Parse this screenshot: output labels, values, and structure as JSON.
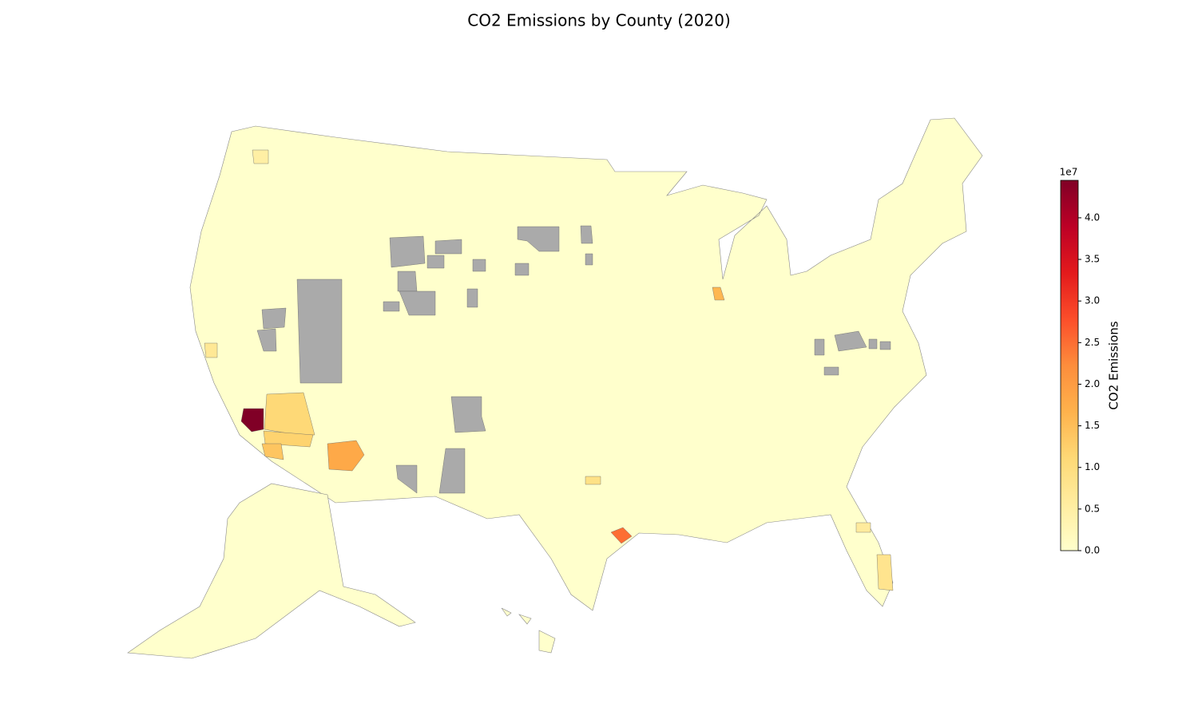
{
  "chart_data": {
    "type": "choropleth",
    "title": "CO2 Emissions by County (2020)",
    "colorbar_label": "CO2 Emissions",
    "colorbar_offset": "1e7",
    "clim": [
      0,
      44500000
    ],
    "cticks": [
      {
        "value": 0,
        "label": "0.0"
      },
      {
        "value": 5000000,
        "label": "0.5"
      },
      {
        "value": 10000000,
        "label": "1.0"
      },
      {
        "value": 15000000,
        "label": "1.5"
      },
      {
        "value": 20000000,
        "label": "2.0"
      },
      {
        "value": 25000000,
        "label": "2.5"
      },
      {
        "value": 30000000,
        "label": "3.0"
      },
      {
        "value": 35000000,
        "label": "3.5"
      },
      {
        "value": 40000000,
        "label": "4.0"
      }
    ],
    "colormap": [
      "#ffffcc",
      "#ffeda0",
      "#fed976",
      "#feb24c",
      "#fd8d3c",
      "#fc4e2a",
      "#e31a1c",
      "#bd0026",
      "#800026"
    ],
    "missing_color": "#aaaaaa",
    "values": [
      44500000,
      25000000,
      18000000,
      16000000,
      11000000,
      12000000,
      14000000,
      9000000,
      8000000,
      6000000,
      7000000,
      5000000
    ]
  }
}
